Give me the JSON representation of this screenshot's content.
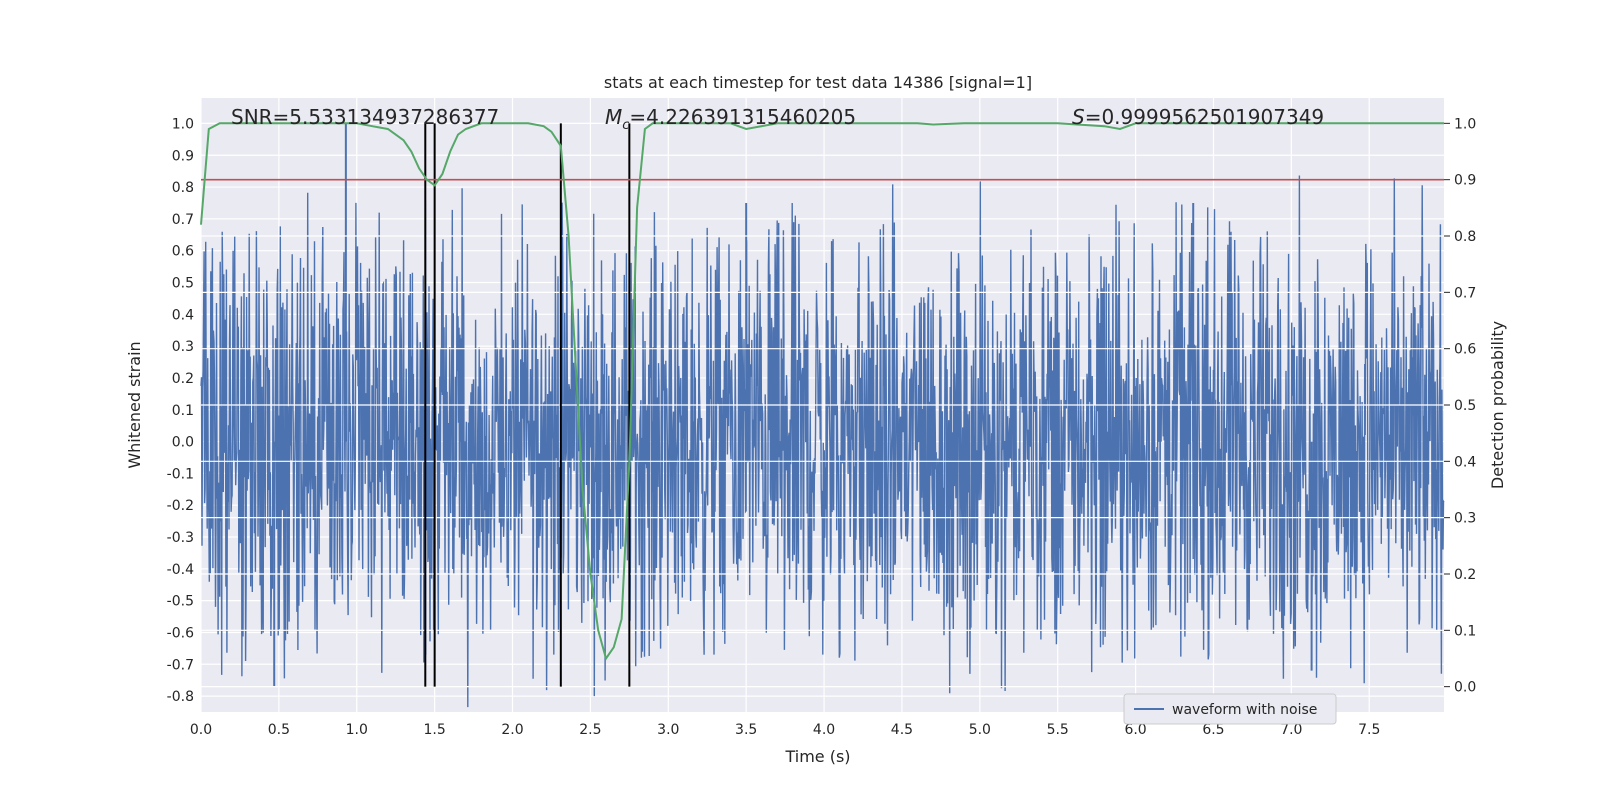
{
  "chart_data": {
    "type": "line",
    "title": "stats at each timestep for test data 14386 [signal=1]",
    "xlabel": "Time (s)",
    "ylabel_left": "Whitened strain",
    "ylabel_right": "Detection probability",
    "xlim": [
      0.0,
      7.98
    ],
    "ylim_left": [
      -0.85,
      1.08
    ],
    "ylim_right": [
      -0.045,
      1.045
    ],
    "xticks": [
      "0.0",
      "0.5",
      "1.0",
      "1.5",
      "2.0",
      "2.5",
      "3.0",
      "3.5",
      "4.0",
      "4.5",
      "5.0",
      "5.5",
      "6.0",
      "6.5",
      "7.0",
      "7.5"
    ],
    "yticks_left": [
      "-0.8",
      "-0.7",
      "-0.6",
      "-0.5",
      "-0.4",
      "-0.3",
      "-0.2",
      "-0.1",
      "0.0",
      "0.1",
      "0.2",
      "0.3",
      "0.4",
      "0.5",
      "0.6",
      "0.7",
      "0.8",
      "0.9",
      "1.0"
    ],
    "yticks_right": [
      "0.0",
      "0.1",
      "0.2",
      "0.3",
      "0.4",
      "0.5",
      "0.6",
      "0.7",
      "0.8",
      "0.9",
      "1.0"
    ],
    "grid": true,
    "legend_position": "lower-right",
    "annotations": {
      "snr": "SNR=5.533134937286377",
      "mc_symbol": "M",
      "mc_sub": "c",
      "mc_value": "=4.226391315460205",
      "s_symbol": "S",
      "s_value": "=0.9999562501907349"
    },
    "threshold": {
      "axis": "right",
      "value": 0.9,
      "color": "#c44e52"
    },
    "vertical_markers": [
      1.44,
      1.5,
      2.31,
      2.75
    ],
    "series": [
      {
        "name": "waveform with noise",
        "axis": "left",
        "color": "#4c72b0",
        "description": "dense whitened strain samples, mostly within ±0.3 with spikes",
        "notable_peaks": [
          {
            "t": 0.93,
            "v": 1.0
          },
          {
            "t": 0.47,
            "v": -0.77
          },
          {
            "t": 3.5,
            "v": 0.75
          },
          {
            "t": 1.44,
            "v": -0.67
          },
          {
            "t": 7.13,
            "v": -0.72
          },
          {
            "t": 6.37,
            "v": 0.75
          }
        ]
      },
      {
        "axis": "right",
        "color": "#55a868",
        "x": [
          0.0,
          0.05,
          0.12,
          0.3,
          0.6,
          0.9,
          1.0,
          1.1,
          1.2,
          1.3,
          1.35,
          1.4,
          1.45,
          1.5,
          1.55,
          1.6,
          1.65,
          1.7,
          1.8,
          1.9,
          2.0,
          2.1,
          2.2,
          2.25,
          2.31,
          2.36,
          2.4,
          2.45,
          2.5,
          2.55,
          2.6,
          2.65,
          2.7,
          2.75,
          2.8,
          2.85,
          2.9,
          3.0,
          3.2,
          3.4,
          3.5,
          3.7,
          4.0,
          4.3,
          4.6,
          4.7,
          4.9,
          5.2,
          5.5,
          5.8,
          5.9,
          6.0,
          6.2,
          6.5,
          6.8,
          7.0,
          7.3,
          7.6,
          7.98
        ],
        "y": [
          0.82,
          0.99,
          1.0,
          1.0,
          1.0,
          1.0,
          1.0,
          0.995,
          0.99,
          0.97,
          0.95,
          0.92,
          0.9,
          0.89,
          0.91,
          0.95,
          0.98,
          0.99,
          1.0,
          1.0,
          1.0,
          1.0,
          0.995,
          0.985,
          0.96,
          0.8,
          0.6,
          0.35,
          0.2,
          0.1,
          0.05,
          0.07,
          0.12,
          0.4,
          0.85,
          0.99,
          1.0,
          1.0,
          1.0,
          1.0,
          0.99,
          1.0,
          1.0,
          1.0,
          1.0,
          0.998,
          1.0,
          1.0,
          1.0,
          0.995,
          0.99,
          1.0,
          1.0,
          1.0,
          1.0,
          1.0,
          1.0,
          1.0,
          1.0
        ]
      }
    ]
  }
}
